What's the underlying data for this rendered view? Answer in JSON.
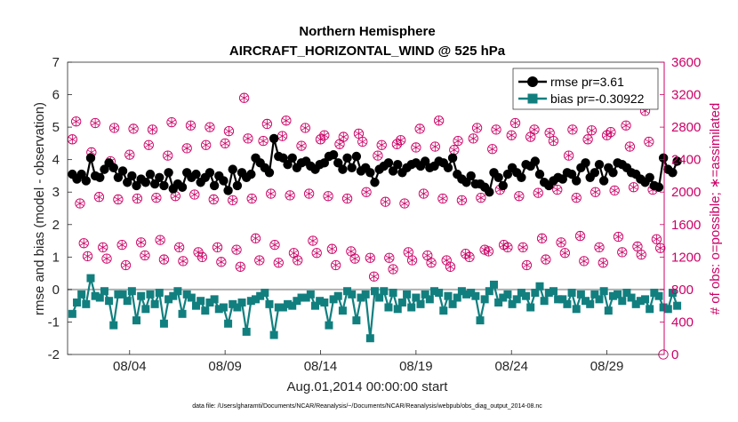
{
  "chart_data": {
    "type": "line",
    "title": "Northern Hemisphere",
    "subtitle": "AIRCRAFT_HORIZONTAL_WIND @ 525 hPa",
    "xlabel": "Aug.01,2014 00:00:00 start",
    "ylabel": "rmse and bias (model - observation)",
    "ylabel_right": "# of obs: o=possible; ∗=assimilated",
    "footnote": "data file: /Users/gharamti/Documents/NCAR/Reanalysis/~/Documents/NCAR/Reanalysis/webpub/obs_diag_output_2014-08.nc",
    "xlim": [
      0.75,
      32.0
    ],
    "ylim": [
      -2,
      7
    ],
    "ylim_right": [
      0,
      3600
    ],
    "x_ticks": [
      {
        "value": 4,
        "label": "08/04"
      },
      {
        "value": 9,
        "label": "08/09"
      },
      {
        "value": 14,
        "label": "08/14"
      },
      {
        "value": 19,
        "label": "08/19"
      },
      {
        "value": 24,
        "label": "08/24"
      },
      {
        "value": 29,
        "label": "08/29"
      }
    ],
    "y_ticks": [
      "-2",
      "-1",
      "0",
      "1",
      "2",
      "3",
      "4",
      "5",
      "6",
      "7"
    ],
    "y_ticks_right": [
      "0",
      "400",
      "800",
      "1200",
      "1600",
      "2000",
      "2400",
      "2800",
      "3200",
      "3600"
    ],
    "legend": {
      "position": "top-right",
      "entries": [
        "rmse pr=3.61",
        "bias pr=-0.30922"
      ]
    },
    "colors": {
      "rmse": "#000000",
      "bias": "#127f7f",
      "obs": "#cc0066",
      "zero_line": "#b0b0b0",
      "axis": "#262626"
    },
    "rmse": [
      3.55,
      3.4,
      3.55,
      3.35,
      4.05,
      3.5,
      3.45,
      3.7,
      3.9,
      3.75,
      3.45,
      3.65,
      3.3,
      3.5,
      3.2,
      3.4,
      3.3,
      3.55,
      3.25,
      3.45,
      3.2,
      3.6,
      3.1,
      3.25,
      3.15,
      3.6,
      3.45,
      3.55,
      3.3,
      3.45,
      3.6,
      3.2,
      3.5,
      3.35,
      3.05,
      3.7,
      3.2,
      3.6,
      3.45,
      3.55,
      4.05,
      3.9,
      3.75,
      3.6,
      4.65,
      4.1,
      4.05,
      3.85,
      4.05,
      3.75,
      3.9,
      3.95,
      3.8,
      3.7,
      3.85,
      3.9,
      4.1,
      4.15,
      3.9,
      3.7,
      4.05,
      3.75,
      4.1,
      3.65,
      3.75,
      3.6,
      3.3,
      3.7,
      3.8,
      3.9,
      3.65,
      3.85,
      3.6,
      3.75,
      3.85,
      3.9,
      3.8,
      3.95,
      3.75,
      3.8,
      3.95,
      3.9,
      3.75,
      4.05,
      3.55,
      3.4,
      3.3,
      3.5,
      3.25,
      3.25,
      3.15,
      3.0,
      3.6,
      3.45,
      3.2,
      3.55,
      3.75,
      3.6,
      3.45,
      3.85,
      3.8,
      3.95,
      3.55,
      3.3,
      3.2,
      3.35,
      3.45,
      3.4,
      3.6,
      3.55,
      3.35,
      3.75,
      3.9,
      3.45,
      3.6,
      3.85,
      3.35,
      3.75,
      3.6,
      3.9,
      3.85,
      3.75,
      3.6,
      3.55,
      3.4,
      3.3,
      3.45,
      3.2,
      3.15,
      4.05,
      3.7,
      3.6,
      3.95
    ],
    "bias": [
      -0.75,
      -0.4,
      -0.15,
      -0.45,
      0.35,
      -0.2,
      -0.25,
      -0.05,
      -0.35,
      -1.1,
      -0.15,
      -0.15,
      -0.35,
      -0.05,
      -0.95,
      -0.2,
      -0.6,
      -0.15,
      -0.45,
      -0.1,
      -1.05,
      -0.3,
      -0.2,
      -0.05,
      -0.75,
      -0.15,
      -0.25,
      -0.5,
      -0.35,
      -0.65,
      -0.4,
      -0.3,
      -0.6,
      -0.55,
      -1.05,
      -0.45,
      -0.55,
      -0.4,
      -1.3,
      -0.35,
      -0.3,
      -0.2,
      -0.1,
      -0.45,
      -1.4,
      -0.55,
      -0.55,
      -0.45,
      -0.5,
      -0.35,
      -0.25,
      -0.25,
      -0.15,
      -0.5,
      -0.35,
      -0.4,
      -1.1,
      -0.3,
      -0.2,
      -0.65,
      -0.05,
      -0.15,
      -0.95,
      -0.25,
      -0.15,
      -1.5,
      -0.05,
      -0.25,
      -0.05,
      -0.55,
      -0.1,
      -0.6,
      -0.4,
      -0.15,
      -0.55,
      -0.25,
      -0.45,
      -0.15,
      -0.3,
      -0.05,
      -0.1,
      -0.65,
      -0.2,
      -0.45,
      -0.25,
      -0.05,
      -0.15,
      -0.1,
      -0.2,
      -0.95,
      -0.3,
      -0.05,
      0.15,
      -0.4,
      -0.25,
      -0.15,
      -0.45,
      -0.3,
      -0.1,
      -0.2,
      -0.55,
      -0.1,
      0.1,
      -0.35,
      -0.1,
      -0.05,
      -0.3,
      -0.3,
      -0.45,
      -0.1,
      -0.6,
      -0.15,
      -0.35,
      -0.45,
      -0.15,
      -0.3,
      -0.05,
      -0.65,
      -0.2,
      -0.15,
      -0.35,
      -0.1,
      -0.25,
      -0.45,
      -0.35,
      -0.3,
      -0.6,
      -0.1,
      -0.2,
      -0.55,
      -0.6,
      -0.1,
      -0.5
    ],
    "obs": [
      [
        2650,
        2870,
        1860,
        1370,
        1210
      ],
      [
        2490,
        2850,
        1940,
        1320,
        1180
      ],
      [
        2380,
        2790,
        1910,
        1350,
        1100
      ],
      [
        2460,
        2780,
        1920,
        1380,
        1220
      ],
      [
        2580,
        2770,
        1930,
        1410,
        1170
      ],
      [
        2450,
        2860,
        1950,
        1320,
        1150
      ],
      [
        2540,
        2820,
        1970,
        1260,
        1200
      ],
      [
        2580,
        2800,
        1910,
        1320,
        1140
      ],
      [
        2600,
        2750,
        1900,
        1290,
        1080
      ],
      [
        3160,
        2660,
        1920,
        1430,
        1160
      ],
      [
        2630,
        2840,
        1980,
        1350,
        1130
      ],
      [
        2690,
        2880,
        1960,
        1250,
        1160
      ],
      [
        2570,
        2790,
        1980,
        1400,
        1250
      ],
      [
        2650,
        2700,
        1950,
        1300,
        1100
      ],
      [
        2590,
        2680,
        1920,
        1270,
        1180
      ],
      [
        2720,
        2620,
        2000,
        1190,
        960
      ],
      [
        2450,
        2580,
        1880,
        1190,
        1050
      ],
      [
        2590,
        2640,
        1860,
        1260,
        1160
      ],
      [
        2550,
        2780,
        1980,
        1220,
        1130
      ],
      [
        2560,
        2880,
        1920,
        1160,
        1080
      ],
      [
        2520,
        2630,
        1900,
        1240,
        1200
      ],
      [
        2660,
        2790,
        1930,
        1290,
        1270
      ],
      [
        2530,
        2770,
        2030,
        1350,
        1320
      ],
      [
        2700,
        2850,
        1950,
        1320,
        1100
      ],
      [
        2680,
        2770,
        1990,
        1430,
        1170
      ],
      [
        2730,
        2630,
        2030,
        1380,
        1250
      ],
      [
        2450,
        2770,
        1930,
        1460,
        1150
      ],
      [
        2650,
        2760,
        2000,
        1320,
        1130
      ],
      [
        2700,
        2740,
        2020,
        1450,
        1260
      ],
      [
        2820,
        2560,
        2060,
        1330,
        1230
      ],
      [
        3000,
        2620,
        2030,
        1420,
        1310
      ]
    ]
  }
}
